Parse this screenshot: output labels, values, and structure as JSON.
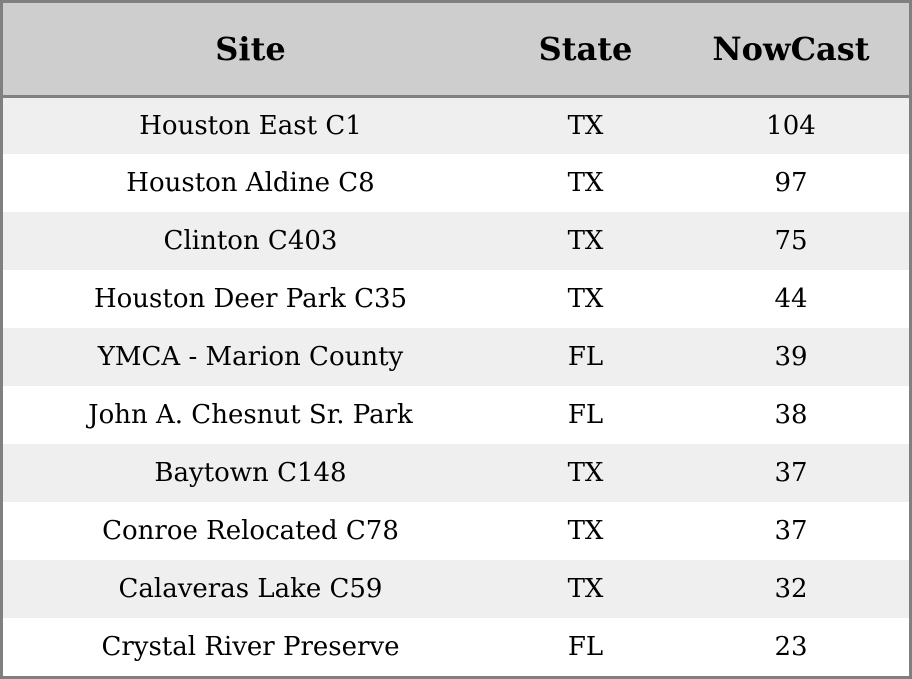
{
  "chart_data": {
    "type": "table",
    "columns": [
      "Site",
      "State",
      "NowCast"
    ],
    "rows": [
      [
        "Houston East C1",
        "TX",
        "104"
      ],
      [
        "Houston Aldine C8",
        "TX",
        "97"
      ],
      [
        "Clinton C403",
        "TX",
        "75"
      ],
      [
        "Houston Deer Park C35",
        "TX",
        "44"
      ],
      [
        "YMCA - Marion County",
        "FL",
        "39"
      ],
      [
        "John A. Chesnut Sr. Park",
        "FL",
        "38"
      ],
      [
        "Baytown C148",
        "TX",
        "37"
      ],
      [
        "Conroe Relocated C78",
        "TX",
        "37"
      ],
      [
        "Calaveras Lake C59",
        "TX",
        "32"
      ],
      [
        "Crystal River Preserve",
        "FL",
        "23"
      ]
    ],
    "colors": {
      "header_bg": "#cecece",
      "row_odd_bg": "#efefef",
      "row_even_bg": "#ffffff",
      "border": "#808080"
    }
  }
}
